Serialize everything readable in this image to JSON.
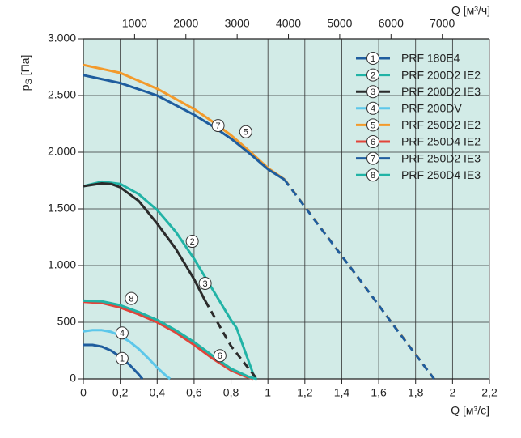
{
  "chart_data": {
    "type": "line",
    "xlabel": "Q [м³/с]",
    "x2label": "Q [м³/ч]",
    "ylabel_parts": [
      "p",
      "S",
      " [Па]"
    ],
    "xlim": [
      0,
      2.2
    ],
    "xticks": [
      0,
      {
        "value": 0.2,
        "label": "0,2"
      },
      {
        "value": 0.4,
        "label": "0,4"
      },
      {
        "value": 0.6,
        "label": "0,6"
      },
      {
        "value": 0.8,
        "label": "0,8"
      },
      1,
      {
        "value": 1.2,
        "label": "1,2"
      },
      {
        "value": 1.4,
        "label": "1,4"
      },
      {
        "value": 1.6,
        "label": "1,6"
      },
      {
        "value": 1.8,
        "label": "1,8"
      },
      2,
      {
        "value": 2.2,
        "label": "2,2"
      }
    ],
    "x2lim": [
      0,
      7920
    ],
    "x2ticks": [
      1000,
      2000,
      3000,
      4000,
      5000,
      6000,
      7000
    ],
    "ylim": [
      0,
      3000
    ],
    "yticks": [
      0,
      500,
      {
        "value": 1000,
        "label": "1.000"
      },
      {
        "value": 1500,
        "label": "1.500"
      },
      {
        "value": 2000,
        "label": "2.000"
      },
      {
        "value": 2500,
        "label": "2.500"
      },
      {
        "value": 3000,
        "label": "3.000"
      }
    ],
    "grid": true,
    "background": "#d2ebe7",
    "legend": "upper right",
    "series": [
      {
        "name": "PRF 180E4",
        "marker_label": "1",
        "color": "#1f5d9e",
        "dash_start": null,
        "x": [
          0,
          0.05,
          0.1,
          0.15,
          0.2,
          0.25,
          0.3,
          0.32
        ],
        "values": [
          300,
          300,
          285,
          250,
          195,
          125,
          40,
          0
        ]
      },
      {
        "name": "PRF 200D2 IE2",
        "marker_label": "2",
        "color": "#21b3a6",
        "dash_start": 11,
        "x": [
          0,
          0.1,
          0.2,
          0.3,
          0.4,
          0.5,
          0.6,
          0.7,
          0.8,
          0.83,
          0.83,
          0.93
        ],
        "values": [
          1700,
          1740,
          1720,
          1630,
          1490,
          1300,
          1060,
          790,
          520,
          450,
          450,
          0
        ]
      },
      {
        "name": "PRF 200D2 IE3",
        "marker_label": "3",
        "color": "#2b2b2b",
        "dash_start": 8,
        "x": [
          0,
          0.1,
          0.15,
          0.2,
          0.3,
          0.4,
          0.5,
          0.6,
          0.66,
          0.8,
          0.94
        ],
        "values": [
          1700,
          1725,
          1720,
          1690,
          1570,
          1370,
          1150,
          880,
          690,
          290,
          0
        ]
      },
      {
        "name": "PRF 200DV",
        "marker_label": "4",
        "color": "#5cc7ea",
        "dash_start": null,
        "x": [
          0,
          0.05,
          0.1,
          0.15,
          0.2,
          0.25,
          0.3,
          0.35,
          0.4,
          0.45,
          0.47
        ],
        "values": [
          420,
          430,
          430,
          415,
          380,
          330,
          265,
          185,
          100,
          25,
          0
        ]
      },
      {
        "name": "PRF 250D2 IE2",
        "marker_label": "5",
        "color": "#f39a2b",
        "dash_start": 8,
        "x": [
          0,
          0.2,
          0.4,
          0.6,
          0.7,
          0.8,
          0.9,
          1.0,
          1.09,
          1.2,
          1.4,
          1.6,
          1.8,
          1.9
        ],
        "values": [
          2770,
          2700,
          2560,
          2380,
          2270,
          2150,
          2010,
          1860,
          1760,
          1520,
          1085,
          650,
          217,
          0
        ]
      },
      {
        "name": "PRF 250D4 IE2",
        "marker_label": "6",
        "color": "#e2443a",
        "dash_start": null,
        "x": [
          0,
          0.1,
          0.2,
          0.3,
          0.4,
          0.5,
          0.6,
          0.7,
          0.8,
          0.88,
          0.92
        ],
        "values": [
          680,
          670,
          630,
          570,
          500,
          410,
          300,
          180,
          75,
          20,
          0
        ]
      },
      {
        "name": "PRF 250D2 IE3",
        "marker_label": "7",
        "color": "#1f5d9e",
        "dash_start": 8,
        "x": [
          0,
          0.2,
          0.4,
          0.6,
          0.7,
          0.8,
          0.9,
          1.0,
          1.09,
          1.3,
          1.5,
          1.7,
          1.9
        ],
        "values": [
          2680,
          2610,
          2500,
          2330,
          2230,
          2120,
          1990,
          1850,
          1757,
          1300,
          870,
          430,
          0
        ]
      },
      {
        "name": "PRF 250D4 IE3",
        "marker_label": "8",
        "color": "#21b3a6",
        "dash_start": null,
        "x": [
          0,
          0.1,
          0.2,
          0.3,
          0.4,
          0.5,
          0.6,
          0.7,
          0.8,
          0.9,
          0.94
        ],
        "values": [
          690,
          685,
          650,
          590,
          520,
          430,
          325,
          205,
          90,
          15,
          0
        ]
      }
    ],
    "annotations": [
      {
        "text": "1",
        "x": 0.21,
        "y": 180
      },
      {
        "text": "2",
        "x": 0.59,
        "y": 1214
      },
      {
        "text": "3",
        "x": 0.66,
        "y": 843
      },
      {
        "text": "4",
        "x": 0.21,
        "y": 405
      },
      {
        "text": "5",
        "x": 0.88,
        "y": 2180
      },
      {
        "text": "6",
        "x": 0.74,
        "y": 205
      },
      {
        "text": "7",
        "x": 0.73,
        "y": 2235
      },
      {
        "text": "8",
        "x": 0.26,
        "y": 710
      }
    ]
  }
}
